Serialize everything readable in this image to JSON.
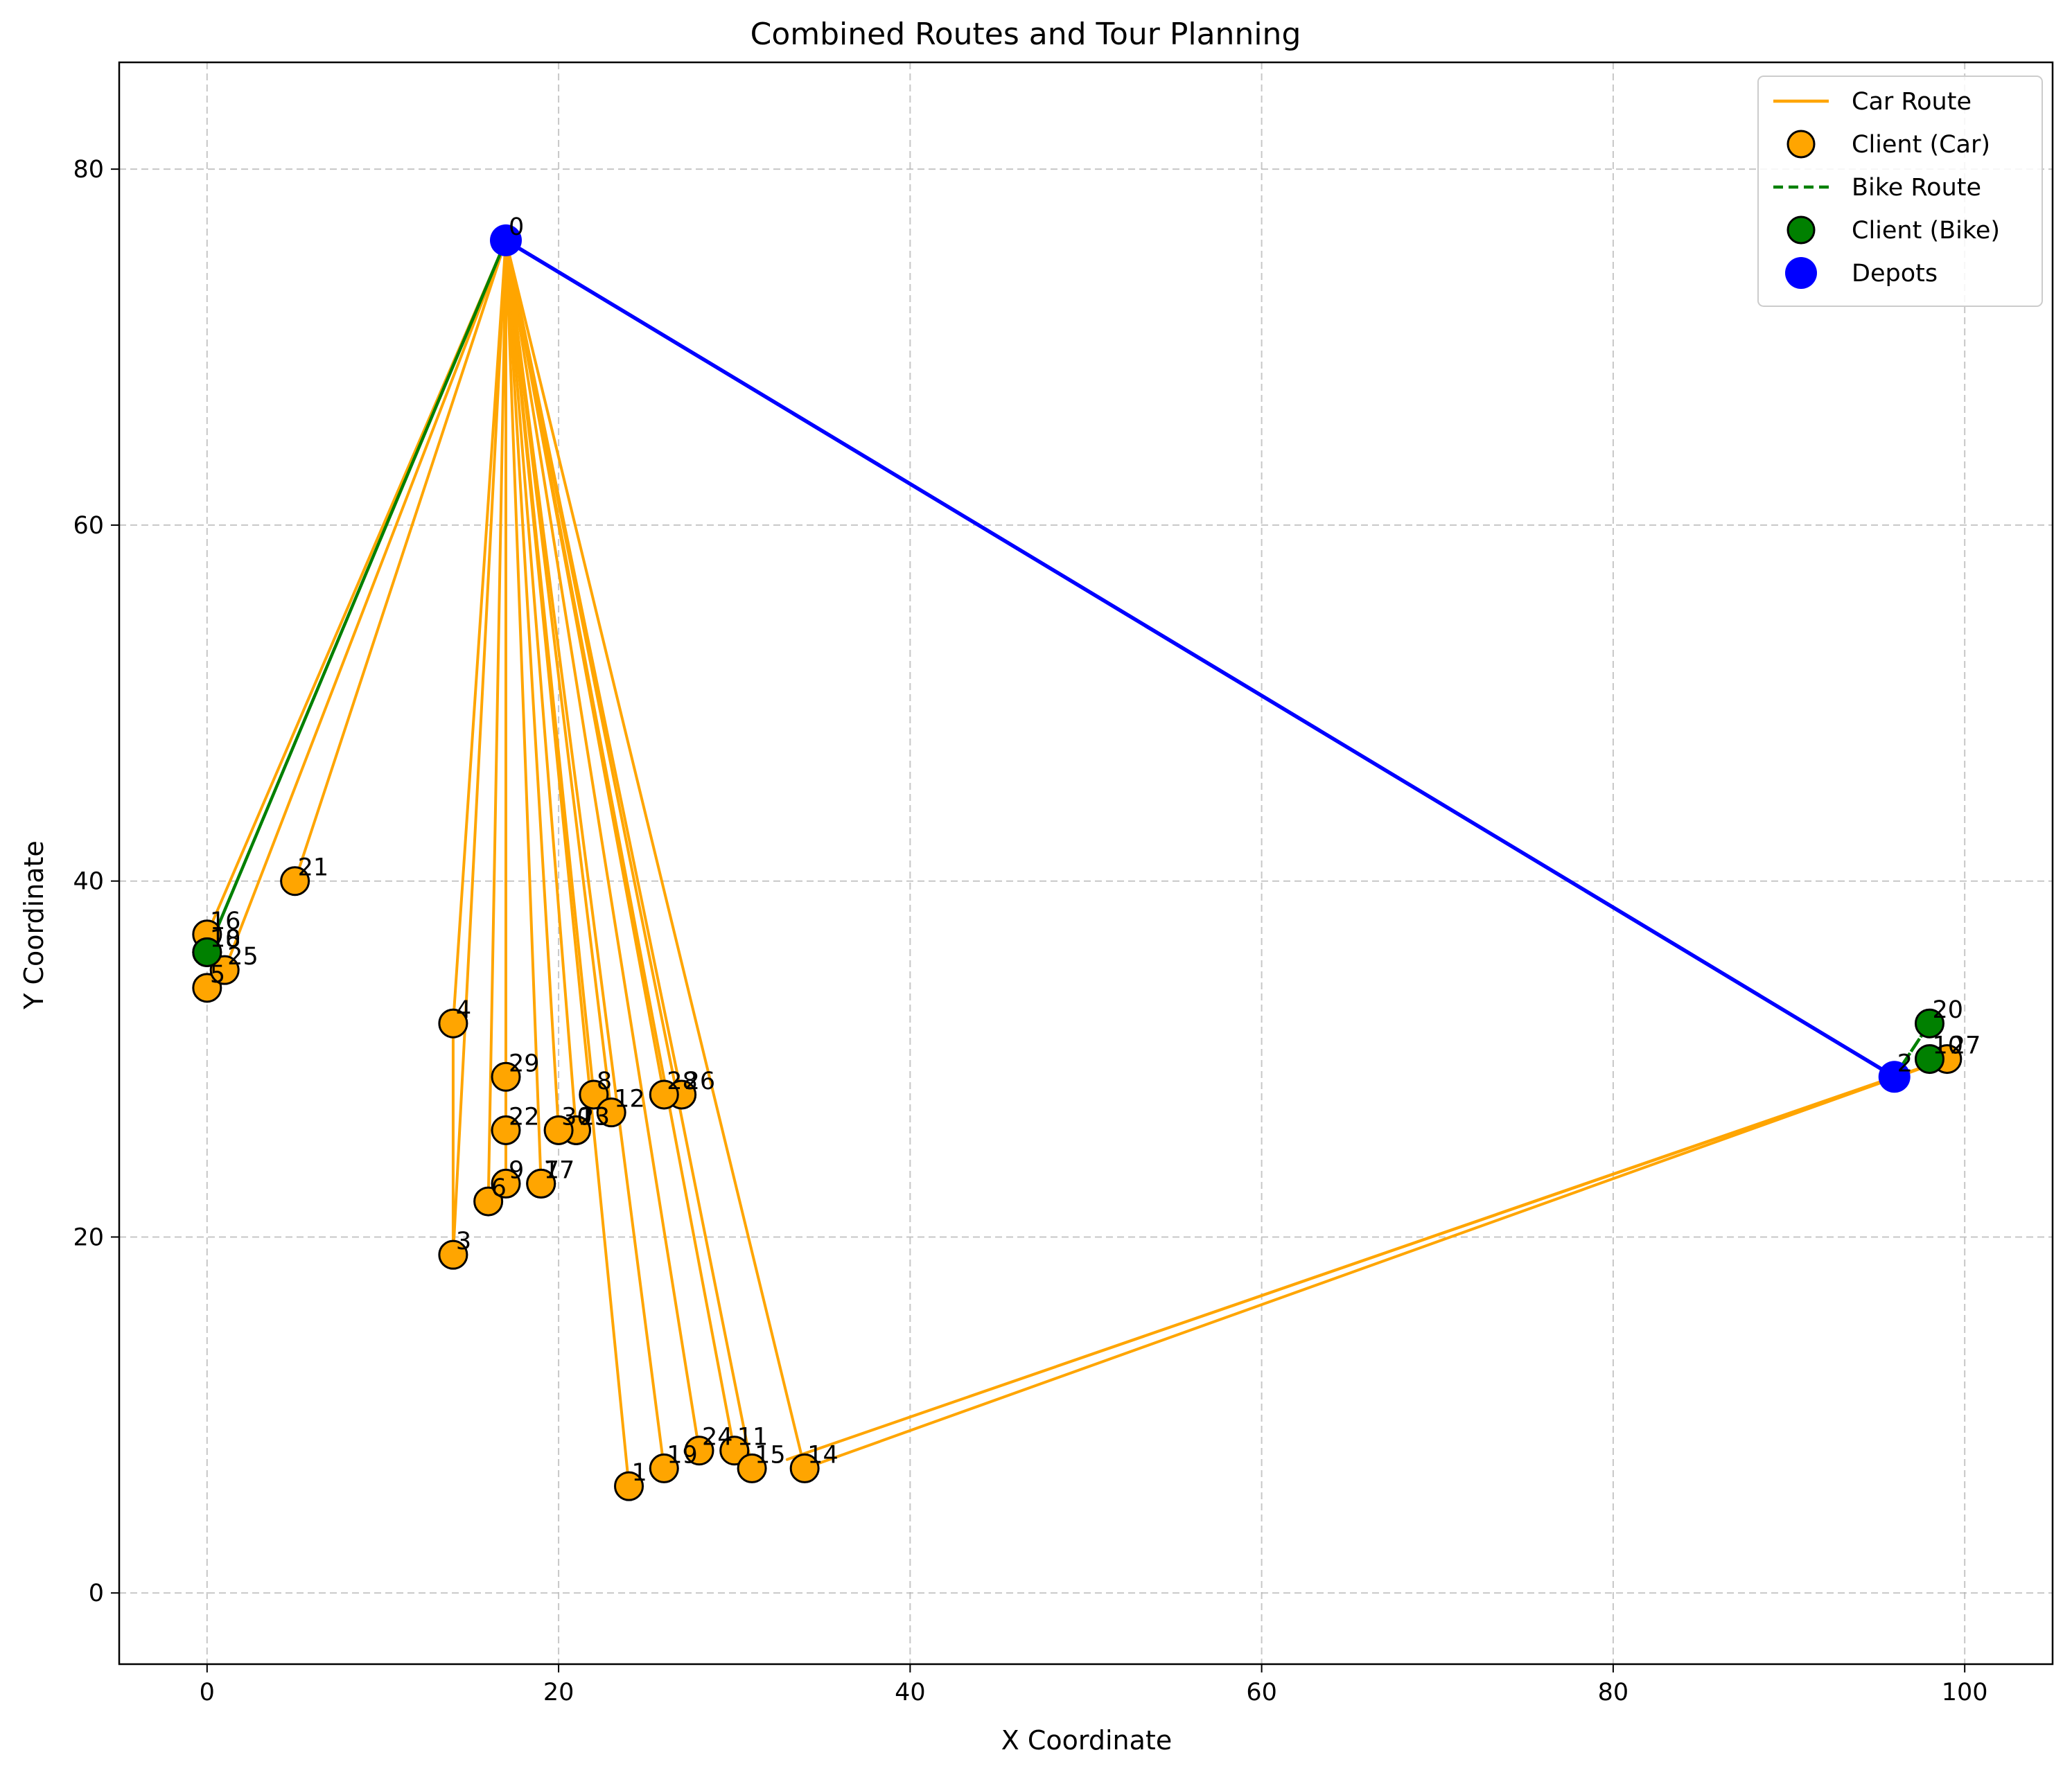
{
  "chart_data": {
    "type": "scatter",
    "title": "Combined Routes and Tour Planning",
    "xlabel": "X Coordinate",
    "ylabel": "Y Coordinate",
    "xlim": [
      -5,
      105
    ],
    "ylim": [
      -4,
      86
    ],
    "xticks": [
      0,
      20,
      40,
      60,
      80,
      100
    ],
    "yticks": [
      0,
      20,
      40,
      60,
      80
    ],
    "grid": true,
    "legend_position": "top-right",
    "colors": {
      "car": "#FFA500",
      "bike": "#008000",
      "depot": "#0000FF"
    },
    "legend": [
      {
        "label": "Car Route",
        "kind": "line",
        "color": "#FFA500"
      },
      {
        "label": "Client (Car)",
        "kind": "marker",
        "color": "#FFA500"
      },
      {
        "label": "Bike Route",
        "kind": "dashed",
        "color": "#008000"
      },
      {
        "label": "Client (Bike)",
        "kind": "marker",
        "color": "#008000"
      },
      {
        "label": "Depots",
        "kind": "depot",
        "color": "#0000FF"
      }
    ],
    "depots": [
      {
        "id": "0",
        "x": 17,
        "y": 76
      },
      {
        "id": "2",
        "x": 96,
        "y": 29
      }
    ],
    "depot_link": [
      [
        17,
        76
      ],
      [
        96,
        29
      ]
    ],
    "car_clients": [
      {
        "id": "1",
        "x": 24,
        "y": 6
      },
      {
        "id": "3",
        "x": 14,
        "y": 19
      },
      {
        "id": "4",
        "x": 14,
        "y": 32
      },
      {
        "id": "5",
        "x": 0,
        "y": 34
      },
      {
        "id": "6",
        "x": 16,
        "y": 22
      },
      {
        "id": "7",
        "x": 19,
        "y": 23
      },
      {
        "id": "8",
        "x": 22,
        "y": 28
      },
      {
        "id": "9",
        "x": 17,
        "y": 23
      },
      {
        "id": "11",
        "x": 30,
        "y": 8
      },
      {
        "id": "12",
        "x": 23,
        "y": 27
      },
      {
        "id": "13",
        "x": 21,
        "y": 26
      },
      {
        "id": "14",
        "x": 34,
        "y": 7
      },
      {
        "id": "15",
        "x": 31,
        "y": 7
      },
      {
        "id": "16",
        "x": 0,
        "y": 37
      },
      {
        "id": "17",
        "x": 19,
        "y": 23
      },
      {
        "id": "18",
        "x": 0,
        "y": 36
      },
      {
        "id": "19",
        "x": 26,
        "y": 7
      },
      {
        "id": "21",
        "x": 5,
        "y": 40
      },
      {
        "id": "22",
        "x": 17,
        "y": 26
      },
      {
        "id": "23",
        "x": 21,
        "y": 26
      },
      {
        "id": "24",
        "x": 28,
        "y": 8
      },
      {
        "id": "25",
        "x": 1,
        "y": 35
      },
      {
        "id": "26",
        "x": 27,
        "y": 28
      },
      {
        "id": "27",
        "x": 99,
        "y": 30
      },
      {
        "id": "28",
        "x": 26,
        "y": 28
      },
      {
        "id": "29",
        "x": 17,
        "y": 29
      },
      {
        "id": "30",
        "x": 20,
        "y": 26
      }
    ],
    "bike_clients": [
      {
        "id": "10",
        "x": 0,
        "y": 36
      },
      {
        "id": "20",
        "x": 98,
        "y": 32
      },
      {
        "id": "10",
        "x": 98,
        "y": 30
      }
    ],
    "car_routes": [
      [
        [
          17,
          76
        ],
        [
          0,
          37
        ],
        [
          17,
          76
        ]
      ],
      [
        [
          17,
          76
        ],
        [
          1,
          35
        ],
        [
          17,
          76
        ]
      ],
      [
        [
          17,
          76
        ],
        [
          5,
          40
        ],
        [
          17,
          76
        ]
      ],
      [
        [
          17,
          76
        ],
        [
          14,
          32
        ],
        [
          14,
          19
        ],
        [
          17,
          76
        ]
      ],
      [
        [
          17,
          76
        ],
        [
          16,
          22
        ],
        [
          17,
          76
        ]
      ],
      [
        [
          17,
          76
        ],
        [
          17,
          23
        ],
        [
          17,
          76
        ]
      ],
      [
        [
          17,
          76
        ],
        [
          17,
          26
        ],
        [
          17,
          76
        ]
      ],
      [
        [
          17,
          76
        ],
        [
          17,
          29
        ],
        [
          17,
          76
        ]
      ],
      [
        [
          17,
          76
        ],
        [
          19,
          23
        ],
        [
          17,
          76
        ]
      ],
      [
        [
          17,
          76
        ],
        [
          20,
          26
        ],
        [
          17,
          76
        ]
      ],
      [
        [
          17,
          76
        ],
        [
          21,
          26
        ],
        [
          17,
          76
        ]
      ],
      [
        [
          17,
          76
        ],
        [
          22,
          28
        ],
        [
          17,
          76
        ]
      ],
      [
        [
          17,
          76
        ],
        [
          23,
          27
        ],
        [
          17,
          76
        ]
      ],
      [
        [
          17,
          76
        ],
        [
          24,
          6
        ],
        [
          17,
          76
        ]
      ],
      [
        [
          17,
          76
        ],
        [
          26,
          7
        ],
        [
          17,
          76
        ]
      ],
      [
        [
          17,
          76
        ],
        [
          26,
          28
        ],
        [
          17,
          76
        ]
      ],
      [
        [
          17,
          76
        ],
        [
          27,
          28
        ],
        [
          17,
          76
        ]
      ],
      [
        [
          17,
          76
        ],
        [
          28,
          8
        ],
        [
          17,
          76
        ]
      ],
      [
        [
          17,
          76
        ],
        [
          30,
          8
        ],
        [
          17,
          76
        ]
      ],
      [
        [
          17,
          76
        ],
        [
          31,
          7
        ],
        [
          17,
          76
        ]
      ],
      [
        [
          17,
          76
        ],
        [
          34,
          7
        ],
        [
          99,
          30
        ],
        [
          96,
          29
        ]
      ],
      [
        [
          96,
          29
        ],
        [
          99,
          30
        ],
        [
          33,
          7.5
        ],
        [
          96,
          29
        ]
      ]
    ],
    "bike_routes": [
      [
        [
          17,
          76
        ],
        [
          0,
          36
        ],
        [
          17,
          76
        ]
      ],
      [
        [
          96,
          29
        ],
        [
          98,
          32
        ],
        [
          96,
          29
        ]
      ]
    ]
  }
}
